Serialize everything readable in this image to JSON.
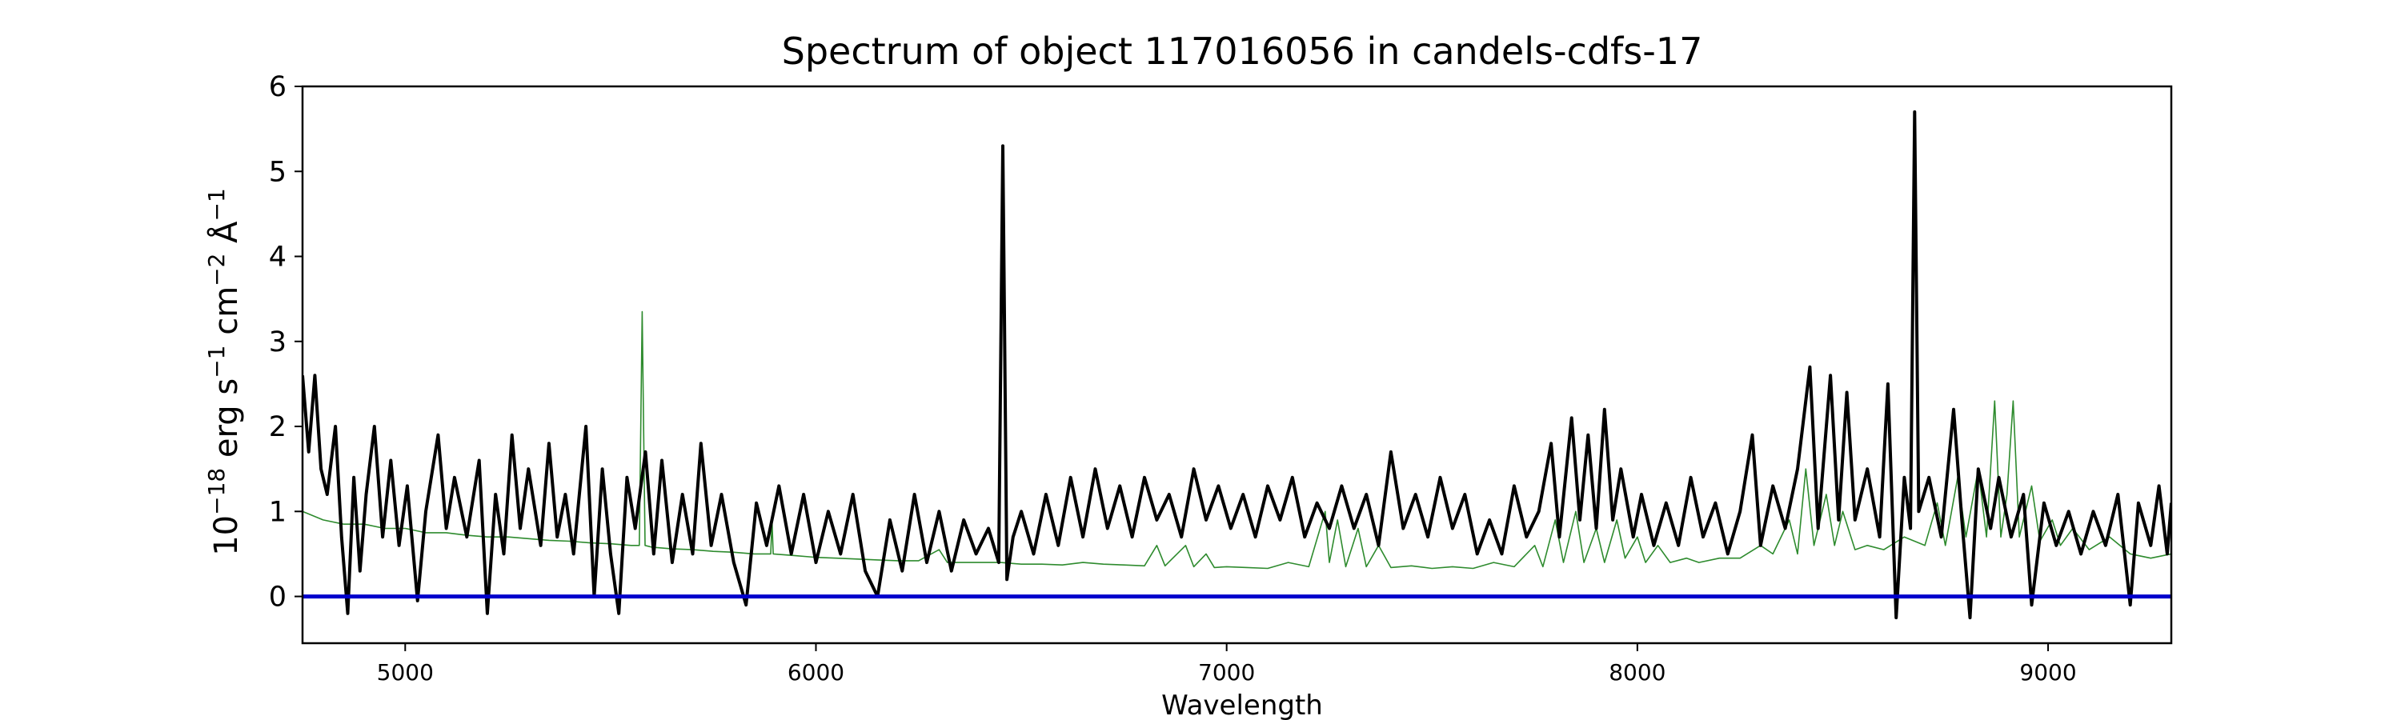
{
  "chart_data": {
    "type": "line",
    "title": "Spectrum of object 117016056 in candels-cdfs-17",
    "xlabel": "Wavelength",
    "ylabel_parts": [
      "10",
      "−18",
      " erg s",
      "−1",
      " cm",
      "−2",
      " Å",
      "−1"
    ],
    "xlim": [
      4750,
      9300
    ],
    "ylim": [
      -0.55,
      6
    ],
    "xticks": [
      5000,
      6000,
      7000,
      8000,
      9000
    ],
    "yticks": [
      0,
      1,
      2,
      3,
      4,
      5,
      6
    ],
    "colors": {
      "flux": "#000000",
      "model": "#2e8b2e",
      "zero": "#0000cc"
    },
    "series": [
      {
        "role": "flux",
        "points": [
          [
            4750,
            2.6
          ],
          [
            4765,
            1.7
          ],
          [
            4780,
            2.6
          ],
          [
            4795,
            1.5
          ],
          [
            4810,
            1.2
          ],
          [
            4830,
            2.0
          ],
          [
            4845,
            0.7
          ],
          [
            4860,
            -0.2
          ],
          [
            4875,
            1.4
          ],
          [
            4890,
            0.3
          ],
          [
            4905,
            1.2
          ],
          [
            4925,
            2.0
          ],
          [
            4945,
            0.7
          ],
          [
            4965,
            1.6
          ],
          [
            4985,
            0.6
          ],
          [
            5005,
            1.3
          ],
          [
            5030,
            -0.05
          ],
          [
            5050,
            1.0
          ],
          [
            5080,
            1.9
          ],
          [
            5100,
            0.8
          ],
          [
            5120,
            1.4
          ],
          [
            5150,
            0.7
          ],
          [
            5180,
            1.6
          ],
          [
            5200,
            -0.2
          ],
          [
            5220,
            1.2
          ],
          [
            5240,
            0.5
          ],
          [
            5260,
            1.9
          ],
          [
            5280,
            0.8
          ],
          [
            5300,
            1.5
          ],
          [
            5330,
            0.6
          ],
          [
            5350,
            1.8
          ],
          [
            5370,
            0.7
          ],
          [
            5390,
            1.2
          ],
          [
            5410,
            0.5
          ],
          [
            5440,
            2.0
          ],
          [
            5460,
            0.0
          ],
          [
            5480,
            1.5
          ],
          [
            5500,
            0.5
          ],
          [
            5520,
            -0.2
          ],
          [
            5540,
            1.4
          ],
          [
            5560,
            0.8
          ],
          [
            5585,
            1.7
          ],
          [
            5605,
            0.5
          ],
          [
            5625,
            1.6
          ],
          [
            5650,
            0.4
          ],
          [
            5675,
            1.2
          ],
          [
            5700,
            0.5
          ],
          [
            5720,
            1.8
          ],
          [
            5745,
            0.6
          ],
          [
            5770,
            1.2
          ],
          [
            5800,
            0.4
          ],
          [
            5830,
            -0.1
          ],
          [
            5855,
            1.1
          ],
          [
            5880,
            0.6
          ],
          [
            5910,
            1.3
          ],
          [
            5940,
            0.5
          ],
          [
            5970,
            1.2
          ],
          [
            6000,
            0.4
          ],
          [
            6030,
            1.0
          ],
          [
            6060,
            0.5
          ],
          [
            6090,
            1.2
          ],
          [
            6120,
            0.3
          ],
          [
            6150,
            0.0
          ],
          [
            6180,
            0.9
          ],
          [
            6210,
            0.3
          ],
          [
            6240,
            1.2
          ],
          [
            6270,
            0.4
          ],
          [
            6300,
            1.0
          ],
          [
            6330,
            0.3
          ],
          [
            6360,
            0.9
          ],
          [
            6390,
            0.5
          ],
          [
            6420,
            0.8
          ],
          [
            6445,
            0.4
          ],
          [
            6455,
            5.3
          ],
          [
            6465,
            0.2
          ],
          [
            6480,
            0.7
          ],
          [
            6500,
            1.0
          ],
          [
            6530,
            0.5
          ],
          [
            6560,
            1.2
          ],
          [
            6590,
            0.6
          ],
          [
            6620,
            1.4
          ],
          [
            6650,
            0.7
          ],
          [
            6680,
            1.5
          ],
          [
            6710,
            0.8
          ],
          [
            6740,
            1.3
          ],
          [
            6770,
            0.7
          ],
          [
            6800,
            1.4
          ],
          [
            6830,
            0.9
          ],
          [
            6860,
            1.2
          ],
          [
            6890,
            0.7
          ],
          [
            6920,
            1.5
          ],
          [
            6950,
            0.9
          ],
          [
            6980,
            1.3
          ],
          [
            7010,
            0.8
          ],
          [
            7040,
            1.2
          ],
          [
            7070,
            0.7
          ],
          [
            7100,
            1.3
          ],
          [
            7130,
            0.9
          ],
          [
            7160,
            1.4
          ],
          [
            7190,
            0.7
          ],
          [
            7220,
            1.1
          ],
          [
            7250,
            0.8
          ],
          [
            7280,
            1.3
          ],
          [
            7310,
            0.8
          ],
          [
            7340,
            1.2
          ],
          [
            7370,
            0.6
          ],
          [
            7400,
            1.7
          ],
          [
            7430,
            0.8
          ],
          [
            7460,
            1.2
          ],
          [
            7490,
            0.7
          ],
          [
            7520,
            1.4
          ],
          [
            7550,
            0.8
          ],
          [
            7580,
            1.2
          ],
          [
            7610,
            0.5
          ],
          [
            7640,
            0.9
          ],
          [
            7670,
            0.5
          ],
          [
            7700,
            1.3
          ],
          [
            7730,
            0.7
          ],
          [
            7760,
            1.0
          ],
          [
            7790,
            1.8
          ],
          [
            7810,
            0.7
          ],
          [
            7840,
            2.1
          ],
          [
            7860,
            0.9
          ],
          [
            7880,
            1.9
          ],
          [
            7900,
            0.8
          ],
          [
            7920,
            2.2
          ],
          [
            7940,
            0.9
          ],
          [
            7960,
            1.5
          ],
          [
            7990,
            0.7
          ],
          [
            8010,
            1.2
          ],
          [
            8040,
            0.6
          ],
          [
            8070,
            1.1
          ],
          [
            8100,
            0.6
          ],
          [
            8130,
            1.4
          ],
          [
            8160,
            0.7
          ],
          [
            8190,
            1.1
          ],
          [
            8220,
            0.5
          ],
          [
            8250,
            1.0
          ],
          [
            8280,
            1.9
          ],
          [
            8300,
            0.6
          ],
          [
            8330,
            1.3
          ],
          [
            8360,
            0.8
          ],
          [
            8390,
            1.5
          ],
          [
            8420,
            2.7
          ],
          [
            8440,
            0.8
          ],
          [
            8470,
            2.6
          ],
          [
            8490,
            0.9
          ],
          [
            8510,
            2.4
          ],
          [
            8530,
            0.9
          ],
          [
            8560,
            1.5
          ],
          [
            8590,
            0.7
          ],
          [
            8610,
            2.5
          ],
          [
            8630,
            -0.25
          ],
          [
            8650,
            1.4
          ],
          [
            8665,
            0.8
          ],
          [
            8675,
            5.7
          ],
          [
            8685,
            1.0
          ],
          [
            8710,
            1.4
          ],
          [
            8740,
            0.7
          ],
          [
            8770,
            2.2
          ],
          [
            8790,
            0.9
          ],
          [
            8810,
            -0.25
          ],
          [
            8830,
            1.5
          ],
          [
            8860,
            0.8
          ],
          [
            8880,
            1.4
          ],
          [
            8910,
            0.7
          ],
          [
            8940,
            1.2
          ],
          [
            8960,
            -0.1
          ],
          [
            8990,
            1.1
          ],
          [
            9020,
            0.6
          ],
          [
            9050,
            1.0
          ],
          [
            9080,
            0.5
          ],
          [
            9110,
            1.0
          ],
          [
            9140,
            0.6
          ],
          [
            9170,
            1.2
          ],
          [
            9200,
            -0.1
          ],
          [
            9220,
            1.1
          ],
          [
            9250,
            0.6
          ],
          [
            9270,
            1.3
          ],
          [
            9290,
            0.5
          ],
          [
            9300,
            1.1
          ]
        ]
      },
      {
        "role": "model",
        "points": [
          [
            4750,
            1.0
          ],
          [
            4800,
            0.9
          ],
          [
            4850,
            0.85
          ],
          [
            4900,
            0.85
          ],
          [
            4950,
            0.8
          ],
          [
            5000,
            0.8
          ],
          [
            5050,
            0.75
          ],
          [
            5100,
            0.75
          ],
          [
            5150,
            0.72
          ],
          [
            5200,
            0.7
          ],
          [
            5250,
            0.7
          ],
          [
            5300,
            0.68
          ],
          [
            5350,
            0.66
          ],
          [
            5400,
            0.65
          ],
          [
            5450,
            0.63
          ],
          [
            5500,
            0.62
          ],
          [
            5550,
            0.6
          ],
          [
            5570,
            0.6
          ],
          [
            5577,
            3.35
          ],
          [
            5584,
            0.6
          ],
          [
            5600,
            0.58
          ],
          [
            5650,
            0.56
          ],
          [
            5700,
            0.55
          ],
          [
            5750,
            0.53
          ],
          [
            5800,
            0.52
          ],
          [
            5850,
            0.5
          ],
          [
            5890,
            0.5
          ],
          [
            5893,
            0.9
          ],
          [
            5896,
            0.5
          ],
          [
            5950,
            0.48
          ],
          [
            6000,
            0.46
          ],
          [
            6050,
            0.45
          ],
          [
            6100,
            0.44
          ],
          [
            6150,
            0.43
          ],
          [
            6200,
            0.42
          ],
          [
            6250,
            0.42
          ],
          [
            6300,
            0.55
          ],
          [
            6320,
            0.4
          ],
          [
            6350,
            0.4
          ],
          [
            6400,
            0.4
          ],
          [
            6450,
            0.4
          ],
          [
            6500,
            0.38
          ],
          [
            6550,
            0.38
          ],
          [
            6600,
            0.37
          ],
          [
            6650,
            0.4
          ],
          [
            6700,
            0.38
          ],
          [
            6750,
            0.37
          ],
          [
            6800,
            0.36
          ],
          [
            6830,
            0.6
          ],
          [
            6850,
            0.36
          ],
          [
            6900,
            0.6
          ],
          [
            6920,
            0.35
          ],
          [
            6950,
            0.5
          ],
          [
            6970,
            0.34
          ],
          [
            7000,
            0.35
          ],
          [
            7050,
            0.34
          ],
          [
            7100,
            0.33
          ],
          [
            7150,
            0.4
          ],
          [
            7200,
            0.35
          ],
          [
            7240,
            1.0
          ],
          [
            7250,
            0.4
          ],
          [
            7270,
            0.9
          ],
          [
            7290,
            0.35
          ],
          [
            7320,
            0.8
          ],
          [
            7340,
            0.35
          ],
          [
            7370,
            0.6
          ],
          [
            7400,
            0.34
          ],
          [
            7450,
            0.36
          ],
          [
            7500,
            0.33
          ],
          [
            7550,
            0.35
          ],
          [
            7600,
            0.33
          ],
          [
            7650,
            0.4
          ],
          [
            7700,
            0.35
          ],
          [
            7750,
            0.6
          ],
          [
            7770,
            0.35
          ],
          [
            7800,
            0.9
          ],
          [
            7820,
            0.4
          ],
          [
            7850,
            1.0
          ],
          [
            7870,
            0.4
          ],
          [
            7900,
            0.8
          ],
          [
            7920,
            0.4
          ],
          [
            7950,
            0.9
          ],
          [
            7970,
            0.45
          ],
          [
            8000,
            0.7
          ],
          [
            8020,
            0.4
          ],
          [
            8050,
            0.6
          ],
          [
            8080,
            0.4
          ],
          [
            8120,
            0.45
          ],
          [
            8150,
            0.4
          ],
          [
            8200,
            0.45
          ],
          [
            8250,
            0.45
          ],
          [
            8300,
            0.6
          ],
          [
            8330,
            0.5
          ],
          [
            8370,
            0.9
          ],
          [
            8390,
            0.5
          ],
          [
            8410,
            1.5
          ],
          [
            8430,
            0.6
          ],
          [
            8460,
            1.2
          ],
          [
            8480,
            0.6
          ],
          [
            8500,
            1.0
          ],
          [
            8530,
            0.55
          ],
          [
            8560,
            0.6
          ],
          [
            8600,
            0.55
          ],
          [
            8650,
            0.7
          ],
          [
            8700,
            0.6
          ],
          [
            8730,
            1.1
          ],
          [
            8750,
            0.6
          ],
          [
            8780,
            1.4
          ],
          [
            8800,
            0.7
          ],
          [
            8830,
            1.5
          ],
          [
            8850,
            0.7
          ],
          [
            8870,
            2.3
          ],
          [
            8885,
            0.7
          ],
          [
            8900,
            1.2
          ],
          [
            8915,
            2.3
          ],
          [
            8930,
            0.7
          ],
          [
            8960,
            1.3
          ],
          [
            8980,
            0.65
          ],
          [
            9010,
            0.9
          ],
          [
            9030,
            0.6
          ],
          [
            9060,
            0.8
          ],
          [
            9100,
            0.55
          ],
          [
            9150,
            0.7
          ],
          [
            9200,
            0.5
          ],
          [
            9250,
            0.45
          ],
          [
            9300,
            0.5
          ]
        ]
      },
      {
        "role": "zero",
        "points": [
          [
            4750,
            0
          ],
          [
            9300,
            0
          ]
        ]
      }
    ]
  }
}
